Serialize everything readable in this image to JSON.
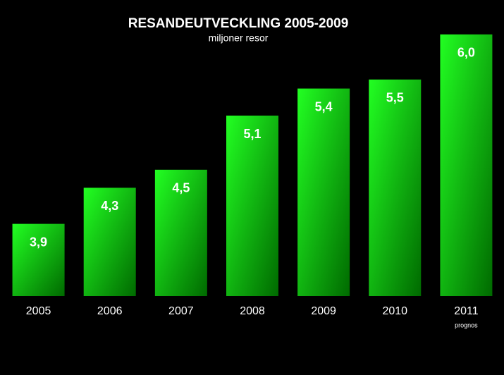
{
  "chart_data": {
    "type": "bar",
    "title": "RESANDEUTVECKLING 2005-2009",
    "subtitle": "miljoner resor",
    "categories": [
      "2005",
      "2006",
      "2007",
      "2008",
      "2009",
      "2010",
      "2011"
    ],
    "values": [
      3.9,
      4.3,
      4.5,
      5.1,
      5.4,
      5.5,
      6.0
    ],
    "value_labels": [
      "3,9",
      "4,3",
      "4,5",
      "5,1",
      "5,4",
      "5,5",
      "6,0"
    ],
    "annotation": "prognos",
    "color": "#22ff22",
    "ylim": [
      3.1,
      6.1
    ]
  }
}
